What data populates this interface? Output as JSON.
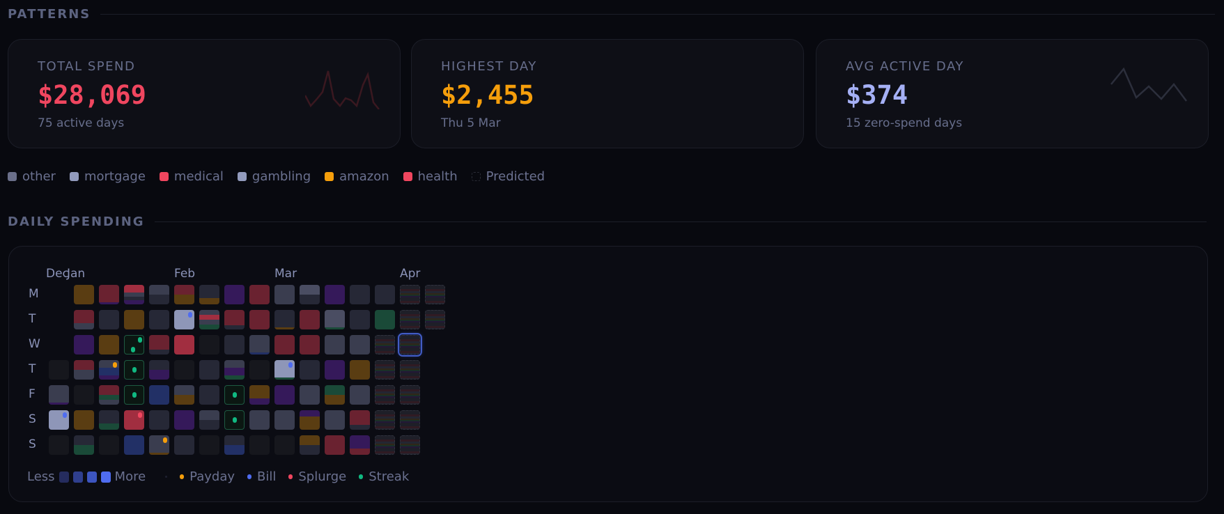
{
  "patterns": {
    "title": "PATTERNS"
  },
  "cards": [
    {
      "label": "TOTAL SPEND",
      "value": "$28,069",
      "sub": "75 active days",
      "color": "#f0465f",
      "spark_color": "#3a1820"
    },
    {
      "label": "HIGHEST DAY",
      "value": "$2,455",
      "sub": "Thu 5 Mar",
      "color": "#f59e0b"
    },
    {
      "label": "AVG ACTIVE DAY",
      "value": "$374",
      "sub": "15 zero-spend days",
      "color": "#a5b0f5",
      "spark_color": "#2c2f3c"
    }
  ],
  "categories": [
    {
      "name": "other",
      "color": "#6a6f8a"
    },
    {
      "name": "mortgage",
      "color": "#929bbd"
    },
    {
      "name": "medical",
      "color": "#f0465f"
    },
    {
      "name": "gambling",
      "color": "#929bbd"
    },
    {
      "name": "amazon",
      "color": "#f59e0b"
    },
    {
      "name": "health",
      "color": "#f0465f"
    },
    {
      "name": "Predicted",
      "color": "transparent"
    }
  ],
  "daily": {
    "title": "DAILY SPENDING",
    "months": [
      {
        "label": "Dec",
        "col": 0
      },
      {
        "label": "Jan",
        "col": 1
      },
      {
        "label": "Feb",
        "col": 5
      },
      {
        "label": "Mar",
        "col": 9
      },
      {
        "label": "Apr",
        "col": 14
      }
    ],
    "days": [
      "M",
      "T",
      "W",
      "T",
      "F",
      "S",
      "S"
    ],
    "palette": {
      "e": "#16171d",
      "sl": "#3a3d4f",
      "sd": "#262836",
      "sx": "#4a4d62",
      "lv": "#8e96b8",
      "r": "#6a2230",
      "rb": "#a12e40",
      "a": "#5a3d12",
      "p": "#35195a",
      "g": "#1a4a38",
      "b": "#223066"
    },
    "weeks": [
      [
        null,
        null,
        null,
        {
          "s": [
            [
              "e",
              1
            ]
          ]
        },
        {
          "s": [
            [
              "sl",
              9
            ],
            [
              "p",
              1
            ]
          ]
        },
        {
          "s": [
            [
              "lv",
              1
            ]
          ],
          "m": "bill"
        },
        {
          "s": [
            [
              "e",
              1
            ]
          ]
        }
      ],
      [
        {
          "s": [
            [
              "a",
              1
            ]
          ]
        },
        {
          "s": [
            [
              "r",
              2
            ],
            [
              "sl",
              1
            ]
          ]
        },
        {
          "s": [
            [
              "p",
              1
            ]
          ]
        },
        {
          "s": [
            [
              "r",
              1
            ],
            [
              "sl",
              1
            ]
          ]
        },
        {
          "s": [
            [
              "e",
              1
            ]
          ]
        },
        {
          "s": [
            [
              "a",
              1
            ]
          ]
        },
        {
          "s": [
            [
              "sd",
              1
            ],
            [
              "g",
              1
            ]
          ]
        }
      ],
      [
        {
          "s": [
            [
              "r",
              9
            ],
            [
              "p",
              1
            ]
          ]
        },
        {
          "s": [
            [
              "sd",
              1
            ]
          ]
        },
        {
          "s": [
            [
              "a",
              1
            ]
          ]
        },
        {
          "s": [
            [
              "sl",
              2
            ],
            [
              "b",
              2
            ],
            [
              "p",
              1
            ]
          ],
          "m": "payday"
        },
        {
          "s": [
            [
              "r",
              2
            ],
            [
              "g",
              1
            ],
            [
              "sl",
              1
            ]
          ]
        },
        {
          "s": [
            [
              "sd",
              2
            ],
            [
              "g",
              1
            ]
          ]
        },
        {
          "s": [
            [
              "e",
              1
            ]
          ]
        }
      ],
      [
        {
          "s": [
            [
              "rb",
              2
            ],
            [
              "sl",
              1
            ],
            [
              "sd",
              1
            ],
            [
              "p",
              1
            ]
          ]
        },
        {
          "s": [
            [
              "a",
              1
            ]
          ]
        },
        {
          "streak": true,
          "m": "streak2"
        },
        {
          "streak": true
        },
        {
          "streak": true
        },
        {
          "s": [
            [
              "rb",
              1
            ]
          ],
          "m": "splurge"
        },
        {
          "s": [
            [
              "b",
              1
            ]
          ]
        }
      ],
      [
        {
          "s": [
            [
              "sl",
              1
            ],
            [
              "sd",
              1
            ]
          ]
        },
        {
          "s": [
            [
              "sd",
              1
            ]
          ]
        },
        {
          "s": [
            [
              "r",
              3
            ],
            [
              "sd",
              1
            ]
          ]
        },
        {
          "s": [
            [
              "sd",
              1
            ],
            [
              "p",
              1
            ]
          ]
        },
        {
          "s": [
            [
              "b",
              1
            ]
          ]
        },
        {
          "s": [
            [
              "sd",
              1
            ]
          ]
        },
        {
          "s": [
            [
              "sl",
              9
            ],
            [
              "a",
              1
            ]
          ],
          "m": "payday"
        }
      ],
      [
        {
          "s": [
            [
              "r",
              1
            ],
            [
              "a",
              1
            ]
          ]
        },
        {
          "s": [
            [
              "lv",
              1
            ]
          ],
          "m": "bill"
        },
        {
          "s": [
            [
              "rb",
              1
            ]
          ]
        },
        {
          "s": [
            [
              "e",
              1
            ]
          ]
        },
        {
          "s": [
            [
              "sl",
              1
            ],
            [
              "a",
              1
            ]
          ]
        },
        {
          "s": [
            [
              "p",
              1
            ]
          ]
        },
        {
          "s": [
            [
              "sd",
              1
            ]
          ]
        }
      ],
      [
        {
          "s": [
            [
              "sd",
              2
            ],
            [
              "a",
              1
            ]
          ]
        },
        {
          "s": [
            [
              "sl",
              1
            ],
            [
              "rb",
              1
            ],
            [
              "sl",
              1
            ],
            [
              "g",
              1
            ]
          ]
        },
        {
          "s": [
            [
              "e",
              1
            ]
          ]
        },
        {
          "s": [
            [
              "sd",
              1
            ]
          ]
        },
        {
          "s": [
            [
              "sd",
              1
            ]
          ]
        },
        {
          "s": [
            [
              "sl",
              1
            ],
            [
              "sd",
              1
            ]
          ]
        },
        {
          "s": [
            [
              "e",
              1
            ]
          ]
        }
      ],
      [
        {
          "s": [
            [
              "p",
              1
            ]
          ]
        },
        {
          "s": [
            [
              "r",
              4
            ],
            [
              "sd",
              1
            ]
          ]
        },
        {
          "s": [
            [
              "sd",
              1
            ]
          ]
        },
        {
          "s": [
            [
              "sl",
              2
            ],
            [
              "p",
              2
            ],
            [
              "g",
              1
            ]
          ]
        },
        {
          "streak": true
        },
        {
          "streak": true
        },
        {
          "s": [
            [
              "sd",
              1
            ],
            [
              "b",
              1
            ]
          ]
        }
      ],
      [
        {
          "s": [
            [
              "r",
              1
            ]
          ]
        },
        {
          "s": [
            [
              "r",
              1
            ]
          ]
        },
        {
          "s": [
            [
              "sl",
              9
            ],
            [
              "b",
              1
            ]
          ]
        },
        {
          "s": [
            [
              "e",
              1
            ]
          ]
        },
        {
          "s": [
            [
              "a",
              2
            ],
            [
              "p",
              1
            ]
          ]
        },
        {
          "s": [
            [
              "sl",
              1
            ]
          ]
        },
        {
          "s": [
            [
              "e",
              1
            ]
          ]
        }
      ],
      [
        {
          "s": [
            [
              "sl",
              1
            ]
          ]
        },
        {
          "s": [
            [
              "sd",
              9
            ],
            [
              "a",
              1
            ]
          ]
        },
        {
          "s": [
            [
              "r",
              1
            ]
          ]
        },
        {
          "s": [
            [
              "lv",
              8
            ],
            [
              "g",
              1
            ]
          ],
          "m": "bill"
        },
        {
          "s": [
            [
              "p",
              1
            ]
          ]
        },
        {
          "s": [
            [
              "sl",
              1
            ]
          ]
        },
        {
          "s": [
            [
              "e",
              1
            ]
          ]
        }
      ],
      [
        {
          "s": [
            [
              "sx",
              1
            ],
            [
              "sd",
              1
            ]
          ]
        },
        {
          "s": [
            [
              "r",
              1
            ]
          ]
        },
        {
          "s": [
            [
              "r",
              1
            ]
          ]
        },
        {
          "s": [
            [
              "sd",
              1
            ]
          ]
        },
        {
          "s": [
            [
              "sl",
              1
            ]
          ]
        },
        {
          "s": [
            [
              "p",
              1
            ],
            [
              "a",
              2
            ]
          ]
        },
        {
          "s": [
            [
              "a",
              1
            ],
            [
              "sd",
              1
            ]
          ]
        }
      ],
      [
        {
          "s": [
            [
              "p",
              1
            ]
          ]
        },
        {
          "s": [
            [
              "sx",
              8
            ],
            [
              "g",
              1
            ]
          ]
        },
        {
          "s": [
            [
              "sl",
              1
            ]
          ]
        },
        {
          "s": [
            [
              "p",
              1
            ]
          ]
        },
        {
          "s": [
            [
              "g",
              1
            ],
            [
              "a",
              1
            ]
          ]
        },
        {
          "s": [
            [
              "sl",
              1
            ]
          ]
        },
        {
          "s": [
            [
              "r",
              1
            ]
          ]
        }
      ],
      [
        {
          "s": [
            [
              "sd",
              1
            ]
          ]
        },
        {
          "s": [
            [
              "sd",
              1
            ]
          ]
        },
        {
          "s": [
            [
              "sl",
              1
            ]
          ]
        },
        {
          "s": [
            [
              "a",
              1
            ]
          ]
        },
        {
          "s": [
            [
              "sl",
              1
            ]
          ]
        },
        {
          "s": [
            [
              "r",
              3
            ],
            [
              "sd",
              1
            ]
          ]
        },
        {
          "s": [
            [
              "p",
              2
            ],
            [
              "r",
              1
            ]
          ]
        }
      ],
      [
        {
          "s": [
            [
              "sd",
              1
            ]
          ]
        },
        {
          "s": [
            [
              "g",
              1
            ]
          ]
        },
        {
          "pred": true
        },
        {
          "pred": true
        },
        {
          "pred": true
        },
        {
          "pred": true
        },
        {
          "pred": true
        }
      ],
      [
        {
          "pred": true
        },
        {
          "pred": true
        },
        {
          "pred": true,
          "selected": true
        },
        {
          "pred": true
        },
        {
          "pred": true
        },
        {
          "pred": true
        },
        {
          "pred": true
        }
      ],
      [
        {
          "pred": true
        },
        {
          "pred": true
        },
        null,
        null,
        null,
        null,
        null
      ]
    ],
    "scale": {
      "less": "Less",
      "more": "More",
      "colors": [
        "#252c5e",
        "#2f3f8e",
        "#3d55c0",
        "#4f6cf0"
      ]
    },
    "markers": [
      {
        "label": "Payday",
        "color": "#f59e0b"
      },
      {
        "label": "Bill",
        "color": "#4f6cf0"
      },
      {
        "label": "Splurge",
        "color": "#f0465f"
      },
      {
        "label": "Streak",
        "color": "#10b981"
      }
    ]
  }
}
